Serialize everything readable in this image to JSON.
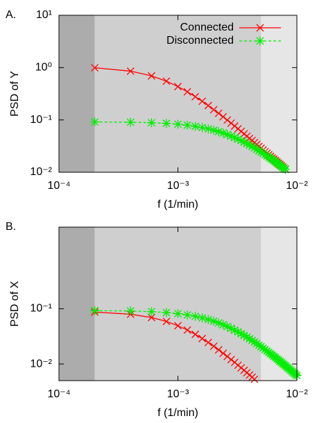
{
  "chart_data": [
    {
      "type": "line",
      "label": "A.",
      "xlabel": "f (1/min)",
      "ylabel": "PSD of Y",
      "xlog": true,
      "ylog": true,
      "xlim": [
        0.0001,
        0.01
      ],
      "ylim": [
        0.01,
        10
      ],
      "xticks": [
        {
          "value": 0.0001,
          "label": "10⁻⁴"
        },
        {
          "value": 0.001,
          "label": "10⁻³"
        },
        {
          "value": 0.01,
          "label": "10⁻²"
        }
      ],
      "yticks": [
        {
          "value": 0.01,
          "label": "10⁻²"
        },
        {
          "value": 0.1,
          "label": "10⁻¹"
        },
        {
          "value": 1,
          "label": "10⁰"
        },
        {
          "value": 10,
          "label": "10¹"
        }
      ],
      "legend": "top-right",
      "bands": [
        {
          "range": [
            0.0001,
            0.0002
          ],
          "color": "#acacac"
        },
        {
          "range": [
            0.0002,
            0.005
          ],
          "color": "#cfcfcf"
        },
        {
          "range": [
            0.005,
            0.01
          ],
          "color": "#e6e6e6"
        }
      ],
      "series": [
        {
          "name": "Connected",
          "color": "#ff0000",
          "marker": "x",
          "dash": false,
          "x": [
            0.0002,
            0.0004,
            0.0006,
            0.0008,
            0.001,
            0.0012,
            0.0014,
            0.0016,
            0.0018,
            0.002,
            0.0022,
            0.0024,
            0.0026,
            0.0028,
            0.003,
            0.0032,
            0.0034,
            0.0036,
            0.0038,
            0.004,
            0.0042,
            0.0044,
            0.0046,
            0.0048,
            0.005,
            0.0052,
            0.0054,
            0.0056,
            0.0058,
            0.006,
            0.0062,
            0.0064,
            0.0066,
            0.0068,
            0.007,
            0.0072,
            0.0074,
            0.0076,
            0.0078,
            0.008
          ],
          "values": [
            0.994,
            0.856,
            0.695,
            0.551,
            0.434,
            0.345,
            0.278,
            0.227,
            0.188,
            0.157,
            0.134,
            0.115,
            0.0992,
            0.0867,
            0.0763,
            0.0677,
            0.0604,
            0.0542,
            0.0489,
            0.0443,
            0.0404,
            0.0369,
            0.0339,
            0.0312,
            0.0288,
            0.0267,
            0.0248,
            0.0231,
            0.0216,
            0.0202,
            0.0189,
            0.0178,
            0.0167,
            0.0158,
            0.0149,
            0.0141,
            0.0134,
            0.0127,
            0.012,
            0.0115
          ]
        },
        {
          "name": "Disconnected",
          "color": "#00ee00",
          "marker": "star",
          "dash": true,
          "x": [
            0.0002,
            0.0004,
            0.0006,
            0.0008,
            0.001,
            0.0012,
            0.0014,
            0.0016,
            0.0018,
            0.002,
            0.0022,
            0.0024,
            0.0026,
            0.0028,
            0.003,
            0.0032,
            0.0034,
            0.0036,
            0.0038,
            0.004,
            0.0042,
            0.0044,
            0.0046,
            0.0048,
            0.005,
            0.0052,
            0.0054,
            0.0056,
            0.0058,
            0.006,
            0.0062,
            0.0064,
            0.0066,
            0.0068,
            0.007,
            0.0072,
            0.0074,
            0.0076,
            0.0078,
            0.008
          ],
          "values": [
            0.0916,
            0.0904,
            0.0885,
            0.0859,
            0.0828,
            0.0793,
            0.0755,
            0.0716,
            0.0676,
            0.0637,
            0.0598,
            0.0561,
            0.0525,
            0.0492,
            0.046,
            0.043,
            0.0403,
            0.0377,
            0.0353,
            0.0331,
            0.0311,
            0.0292,
            0.0275,
            0.0258,
            0.0244,
            0.023,
            0.0217,
            0.0205,
            0.0194,
            0.0184,
            0.0175,
            0.0166,
            0.0158,
            0.015,
            0.0143,
            0.0136,
            0.013,
            0.0124,
            0.0119,
            0.0113
          ]
        }
      ]
    },
    {
      "type": "line",
      "label": "B.",
      "xlabel": "f (1/min)",
      "ylabel": "PSD of X",
      "xlog": true,
      "ylog": true,
      "xlim": [
        0.0001,
        0.01
      ],
      "ylim": [
        0.005,
        3
      ],
      "xticks": [
        {
          "value": 0.0001,
          "label": "10⁻⁴"
        },
        {
          "value": 0.001,
          "label": "10⁻³"
        },
        {
          "value": 0.01,
          "label": "10⁻²"
        }
      ],
      "yticks": [
        {
          "value": 0.01,
          "label": "10⁻²"
        },
        {
          "value": 0.1,
          "label": "10⁻¹"
        }
      ],
      "bands": [
        {
          "range": [
            0.0001,
            0.0002
          ],
          "color": "#acacac"
        },
        {
          "range": [
            0.0002,
            0.005
          ],
          "color": "#cfcfcf"
        },
        {
          "range": [
            0.005,
            0.01
          ],
          "color": "#e6e6e6"
        }
      ],
      "series": [
        {
          "color": "#ff0000",
          "marker": "x",
          "dash": false,
          "x": [
            0.0002,
            0.0004,
            0.0006,
            0.0008,
            0.001,
            0.0012,
            0.0014,
            0.0016,
            0.0018,
            0.002,
            0.0022,
            0.0024,
            0.0026,
            0.0028,
            0.003,
            0.0032,
            0.0034,
            0.0036,
            0.0038,
            0.004,
            0.0042,
            0.0044
          ],
          "values": [
            0.0871,
            0.0795,
            0.0694,
            0.0589,
            0.0493,
            0.0411,
            0.0344,
            0.0289,
            0.0245,
            0.0209,
            0.018,
            0.0156,
            0.0137,
            0.012,
            0.0107,
            0.00951,
            0.00853,
            0.00769,
            0.00696,
            0.00633,
            0.00578,
            0.00529
          ]
        },
        {
          "color": "#00ee00",
          "marker": "star",
          "dash": true,
          "x": [
            0.0002,
            0.0004,
            0.0006,
            0.0008,
            0.001,
            0.0012,
            0.0014,
            0.0016,
            0.0018,
            0.002,
            0.0022,
            0.0024,
            0.0026,
            0.0028,
            0.003,
            0.0032,
            0.0034,
            0.0036,
            0.0038,
            0.004,
            0.0042,
            0.0044,
            0.0046,
            0.0048,
            0.005,
            0.0052,
            0.0054,
            0.0056,
            0.0058,
            0.006,
            0.0062,
            0.0064,
            0.0066,
            0.0068,
            0.007,
            0.0072,
            0.0074,
            0.0076,
            0.0078,
            0.008,
            0.0082,
            0.0084,
            0.0086,
            0.0088,
            0.009,
            0.0092,
            0.0094,
            0.0096,
            0.0098,
            0.01
          ],
          "values": [
            0.0925,
            0.091,
            0.0885,
            0.0853,
            0.0815,
            0.0773,
            0.0729,
            0.0684,
            0.0639,
            0.0595,
            0.0553,
            0.0514,
            0.0477,
            0.0442,
            0.041,
            0.0381,
            0.0354,
            0.033,
            0.0307,
            0.0286,
            0.0267,
            0.025,
            0.0234,
            0.0219,
            0.0206,
            0.0194,
            0.0182,
            0.0172,
            0.0162,
            0.0153,
            0.0145,
            0.0138,
            0.0131,
            0.0124,
            0.0118,
            0.0112,
            0.0107,
            0.0102,
            0.00973,
            0.0093,
            0.00889,
            0.00851,
            0.00816,
            0.00782,
            0.00751,
            0.00721,
            0.00692,
            0.00666,
            0.00641,
            0.00618
          ]
        }
      ]
    }
  ]
}
